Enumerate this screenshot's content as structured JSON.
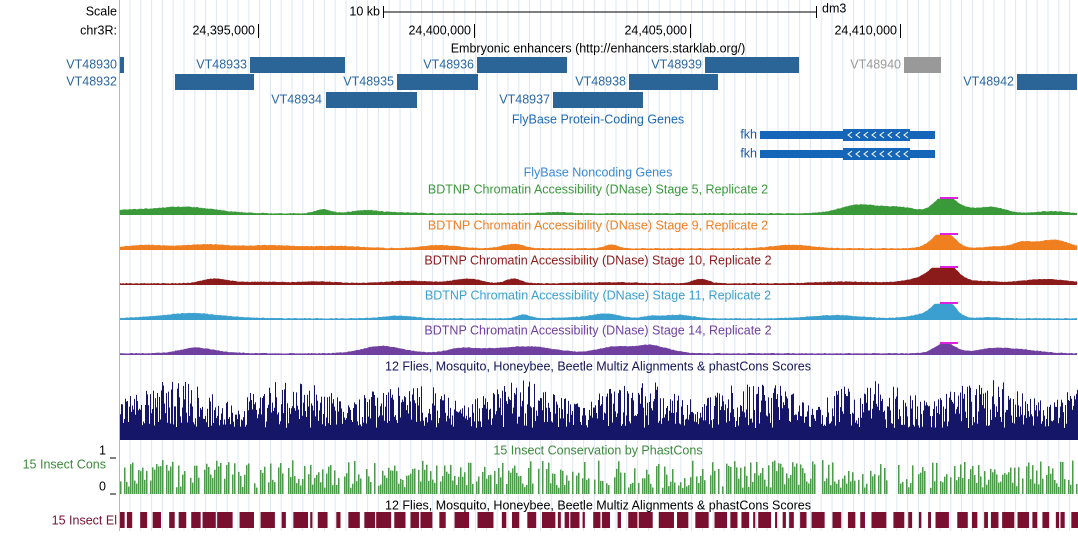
{
  "header": {
    "scale_label": "Scale",
    "scale_bar": "10 kb",
    "assembly": "dm3",
    "chrom": "chr3R:",
    "ticks": [
      "24,395,000",
      "24,400,000",
      "24,405,000",
      "24,410,000"
    ]
  },
  "tracks": {
    "enhancers": {
      "title": "Embryonic enhancers (http://enhancers.starklab.org/)",
      "items": [
        "VT48930",
        "VT48933",
        "VT48936",
        "VT48939",
        "VT48940",
        "VT48932",
        "VT48935",
        "VT48938",
        "VT48942",
        "VT48934",
        "VT48937"
      ]
    },
    "protein_genes": {
      "title": "FlyBase Protein-Coding Genes",
      "genes": [
        "fkh",
        "fkh"
      ]
    },
    "noncoding": {
      "title": "FlyBase Noncoding Genes"
    },
    "dnase": [
      {
        "title": "BDTNP Chromatin Accessibility (DNase) Stage 5, Replicate 2"
      },
      {
        "title": "BDTNP Chromatin Accessibility (DNase) Stage 9, Replicate 2"
      },
      {
        "title": "BDTNP Chromatin Accessibility (DNase) Stage 10, Replicate 2"
      },
      {
        "title": "BDTNP Chromatin Accessibility (DNase) Stage 11, Replicate 2"
      },
      {
        "title": "BDTNP Chromatin Accessibility (DNase) Stage 14, Replicate 2"
      }
    ],
    "multiz": {
      "title": "12 Flies, Mosquito, Honeybee, Beetle Multiz Alignments & phastCons Scores"
    },
    "cons": {
      "title": "15 Insect Conservation by PhastCons",
      "label": "15 Insect Cons",
      "max": 1,
      "min": 0
    },
    "elements": {
      "title": "12 Flies, Mosquito, Honeybee, Beetle Multiz Alignments & phastCons Scores",
      "label": "15 Insect El"
    }
  }
}
